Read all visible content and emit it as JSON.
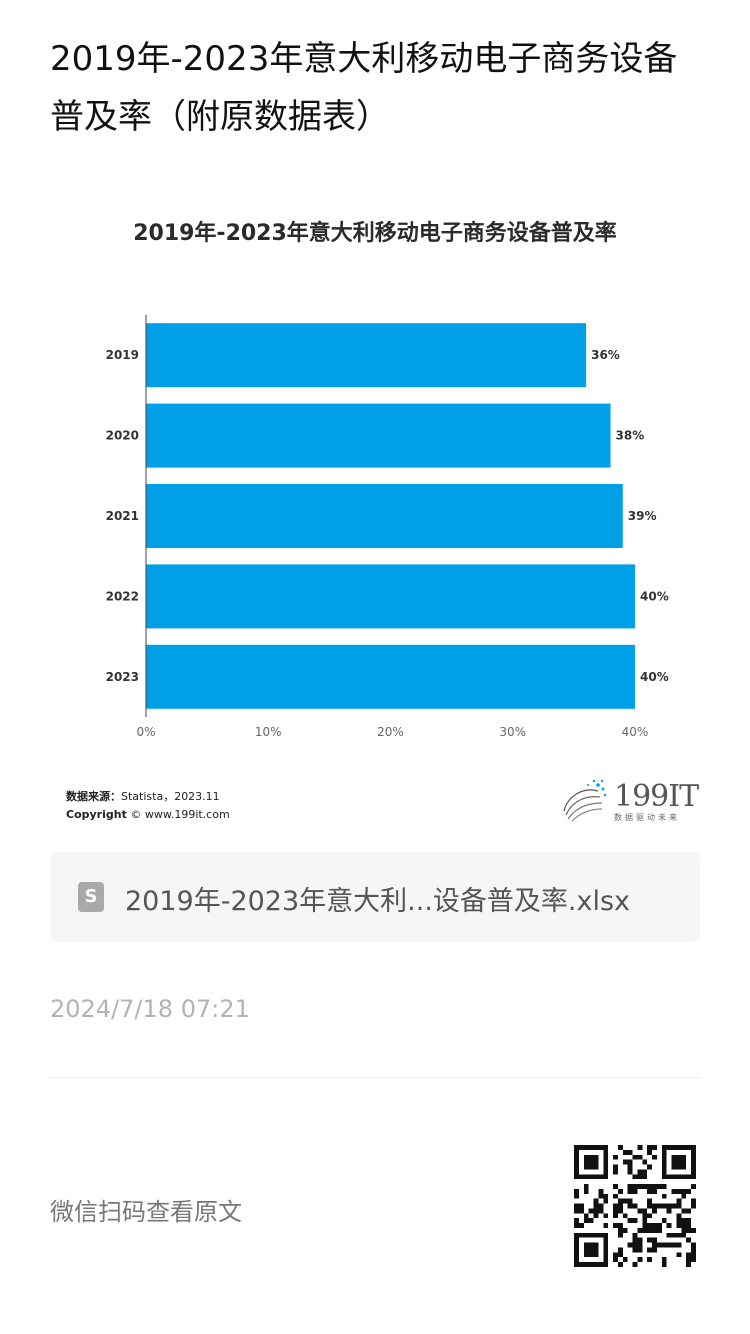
{
  "page": {
    "title": "2019年-2023年意大利移动电子商务设备普及率（附原数据表）"
  },
  "chart_data": {
    "type": "bar",
    "orientation": "horizontal",
    "title": "2019年-2023年意大利移动电子商务设备普及率",
    "categories": [
      "2019",
      "2020",
      "2021",
      "2022",
      "2023"
    ],
    "values": [
      36,
      38,
      39,
      40,
      40
    ],
    "value_labels": [
      "36%",
      "38%",
      "39%",
      "40%",
      "40%"
    ],
    "xlim": [
      0,
      40
    ],
    "x_ticks": [
      "0%",
      "10%",
      "20%",
      "30%",
      "40%"
    ],
    "bar_color": "#00a0e9",
    "grid": false,
    "legend": "none"
  },
  "source": {
    "label": "数据来源：",
    "value": "Statista，2023.11",
    "copyright_label": "Copyright",
    "copyright_value": "© www.199it.com"
  },
  "brand": {
    "name": "199IT",
    "tagline": "数据驱动未来"
  },
  "attachment": {
    "icon": "spreadsheet-file-icon",
    "icon_letter": "S",
    "filename": "2019年-2023年意大利...设备普及率.xlsx"
  },
  "timestamp": "2024/7/18 07:21",
  "footer": {
    "qr_caption": "微信扫码查看原文",
    "qr_icon": "qr-code-icon"
  },
  "colors": {
    "accent": "#00a0e9",
    "muted_text": "#b3b3b3"
  }
}
